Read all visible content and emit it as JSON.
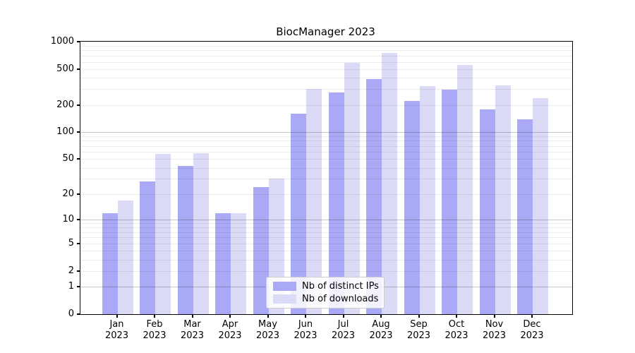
{
  "title": "BiocManager 2023",
  "chart_data": {
    "type": "bar",
    "title": "BiocManager 2023",
    "categories": [
      "Jan 2023",
      "Feb 2023",
      "Mar 2023",
      "Apr 2023",
      "May 2023",
      "Jun 2023",
      "Jul 2023",
      "Aug 2023",
      "Sep 2023",
      "Oct 2023",
      "Nov 2023",
      "Dec 2023"
    ],
    "series": [
      {
        "name": "Nb of distinct IPs",
        "color": "#a9a9f6",
        "values": [
          12,
          28,
          42,
          12,
          24,
          160,
          275,
          390,
          220,
          295,
          180,
          140
        ]
      },
      {
        "name": "Nb of downloads",
        "color": "#dbdbf8",
        "values": [
          17,
          57,
          58,
          12,
          30,
          300,
          580,
          750,
          325,
          555,
          330,
          240
        ]
      }
    ],
    "xlabel": "",
    "ylabel": "",
    "ylim": [
      0,
      1000
    ],
    "yscale": "log10(value+1)",
    "yticks": [
      0,
      1,
      2,
      5,
      10,
      20,
      50,
      100,
      200,
      500,
      1000
    ],
    "grid": "log minor and major gridlines, drawn over bars",
    "legend_position": "bottom-center inside plot"
  },
  "legend": {
    "items": [
      {
        "label": "Nb of distinct IPs",
        "color": "#a9a9f6"
      },
      {
        "label": "Nb of downloads",
        "color": "#dbdbf8"
      }
    ]
  },
  "colors": {
    "background": "#ffffff",
    "axis": "#000000",
    "grid_minor": "rgba(0,0,0,0.075)",
    "grid_major": "rgba(0,0,0,0.22)"
  }
}
